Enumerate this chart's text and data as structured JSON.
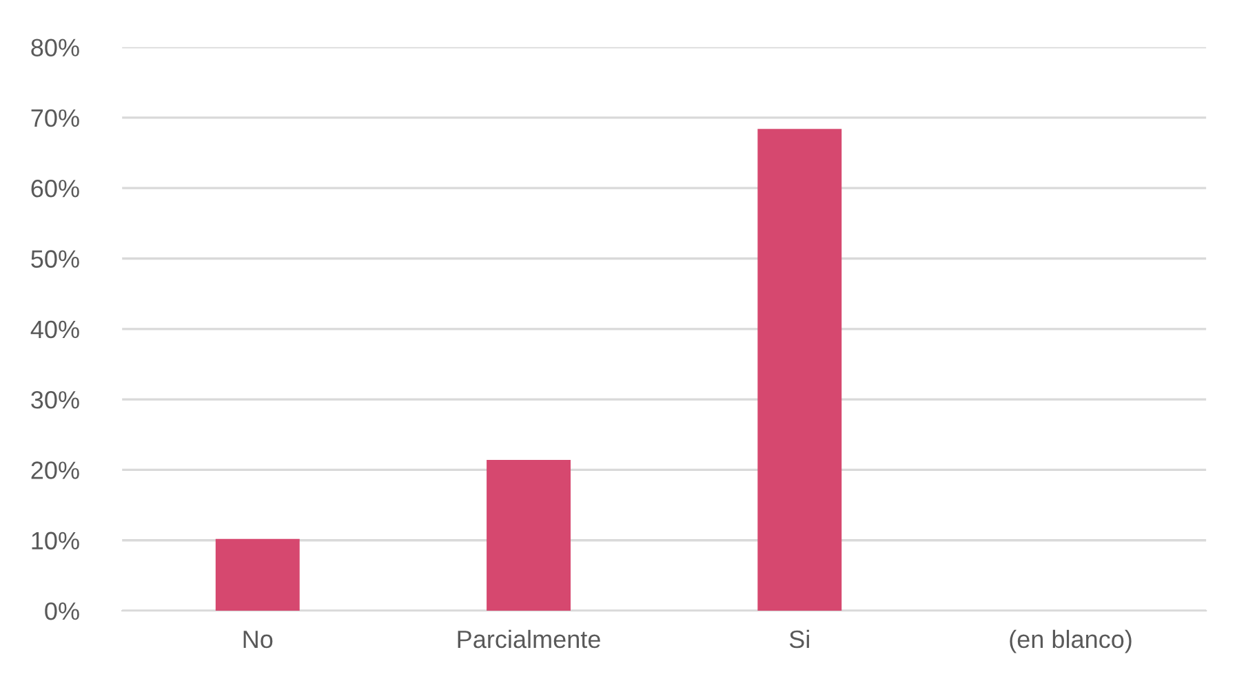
{
  "chart_data": {
    "type": "bar",
    "categories": [
      "No",
      "Parcialmente",
      "Si",
      "(en blanco)"
    ],
    "values": [
      10.2,
      21.4,
      68.4,
      0
    ],
    "color": "#d6486f",
    "ylim": [
      0,
      80
    ],
    "yticks": [
      {
        "value": 0,
        "label": "0%"
      },
      {
        "value": 10,
        "label": "10%"
      },
      {
        "value": 20,
        "label": "20%"
      },
      {
        "value": 30,
        "label": "30%"
      },
      {
        "value": 40,
        "label": "40%"
      },
      {
        "value": 50,
        "label": "50%"
      },
      {
        "value": 60,
        "label": "60%"
      },
      {
        "value": 70,
        "label": "70%"
      },
      {
        "value": 80,
        "label": "80%"
      }
    ],
    "grid": "y"
  }
}
